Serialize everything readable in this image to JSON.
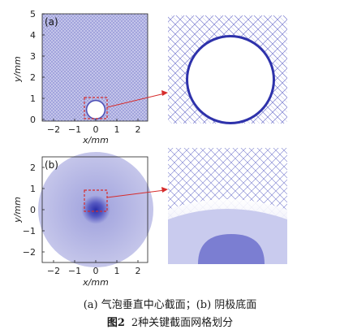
{
  "panels": {
    "a": {
      "label": "(a)",
      "xlabel": "x/mm",
      "ylabel": "y/mm",
      "xticks": [
        "−2",
        "−1",
        "0",
        "1",
        "2"
      ],
      "yticks": [
        "0",
        "1",
        "2",
        "3",
        "4",
        "5"
      ]
    },
    "b": {
      "label": "(b)",
      "xlabel": "x/mm",
      "ylabel": "y/mm",
      "xticks": [
        "−2",
        "−1",
        "0",
        "1",
        "2"
      ],
      "yticks": [
        "−2",
        "−1",
        "0",
        "1",
        "2"
      ]
    }
  },
  "caption": {
    "subcaption": "(a) 气泡垂直中心截面；(b) 阴极底面",
    "figure_number": "图2",
    "figure_title": "2种关键截面网格划分"
  },
  "colors": {
    "mesh": "#3b3fb5",
    "mesh_light": "#b8b9e6",
    "highlight_box": "#d62d2d",
    "axis": "#222222"
  }
}
